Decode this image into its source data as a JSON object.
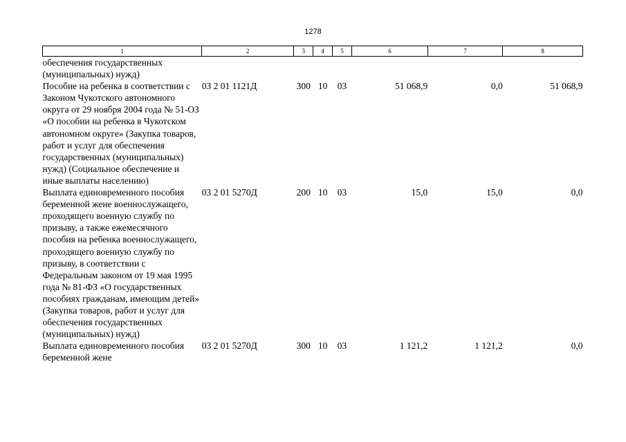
{
  "page_number": "1278",
  "columns": [
    "1",
    "2",
    "3",
    "4",
    "5",
    "6",
    "7",
    "8"
  ],
  "rows": [
    {
      "name": "обеспечения государственных (муниципальных) нужд)",
      "code": "",
      "c3": "",
      "c4": "",
      "c5": "",
      "c6": "",
      "c7": "",
      "c8": ""
    },
    {
      "name": "Пособие на ребенка в соответствии с Законом Чукотского автономного округа от 29 ноября 2004 года № 51-ОЗ «О пособии на ребенка в Чукотском автономном округе» (Закупка товаров, работ и услуг для обеспечения государственных (муниципальных) нужд) (Социальное обеспечение и иные выплаты населению)",
      "code": "03 2 01 1121Д",
      "c3": "300",
      "c4": "10",
      "c5": "03",
      "c6": "51 068,9",
      "c7": "0,0",
      "c8": "51 068,9"
    },
    {
      "name": "Выплата единовременного пособия беременной жене военнослужащего, проходящего военную службу по призыву, а также ежемесячного пособия на ребенка военнослужащего, проходящего военную службу по призыву, в соответствии с Федеральным законом от 19 мая 1995 года № 81-ФЗ «О государственных пособиях гражданам, имеющим детей» (Закупка товаров, работ и услуг для обеспечения государственных (муниципальных) нужд)",
      "code": "03 2 01 5270Д",
      "c3": "200",
      "c4": "10",
      "c5": "03",
      "c6": "15,0",
      "c7": "15,0",
      "c8": "0,0"
    },
    {
      "name": "Выплата единовременного пособия беременной жене",
      "code": "03 2 01 5270Д",
      "c3": "300",
      "c4": "10",
      "c5": "03",
      "c6": "1 121,2",
      "c7": "1 121,2",
      "c8": "0,0"
    }
  ]
}
